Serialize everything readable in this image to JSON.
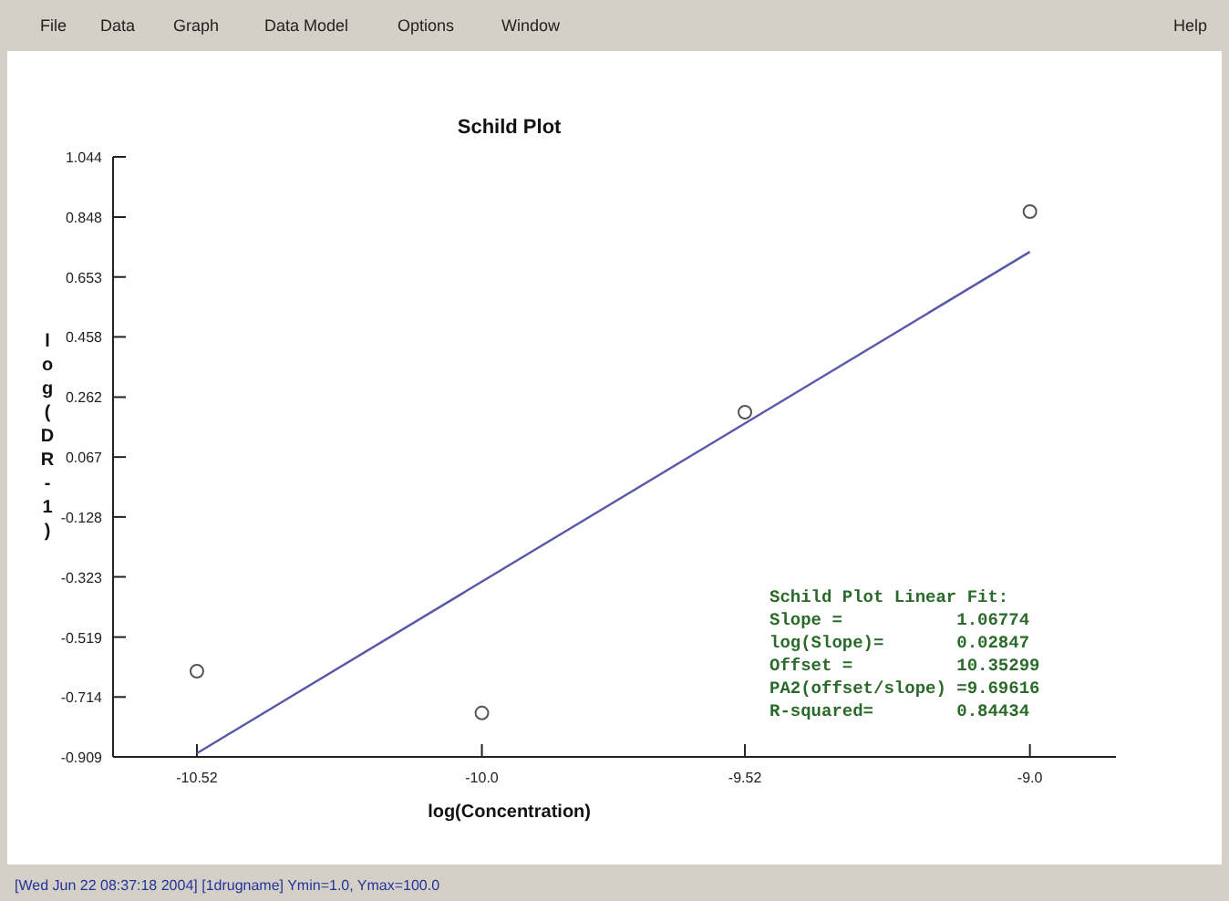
{
  "chart_data": {
    "type": "scatter",
    "title": "Schild Plot",
    "xlabel": "log(Concentration)",
    "ylabel": "log(DR-1)",
    "xlim": [
      -10.673,
      -8.843
    ],
    "ylim": [
      -0.909,
      1.044
    ],
    "xticks": [
      {
        "value": -10.52,
        "label": "-10.52"
      },
      {
        "value": -10.0,
        "label": "-10.0"
      },
      {
        "value": -9.52,
        "label": "-9.52"
      },
      {
        "value": -9.0,
        "label": "-9.0"
      }
    ],
    "yticks": [
      {
        "value": -0.909,
        "label": "-0.909"
      },
      {
        "value": -0.714,
        "label": "-0.714"
      },
      {
        "value": -0.519,
        "label": "-0.519"
      },
      {
        "value": -0.323,
        "label": "-0.323"
      },
      {
        "value": -0.128,
        "label": "-0.128"
      },
      {
        "value": 0.067,
        "label": "0.067"
      },
      {
        "value": 0.262,
        "label": "0.262"
      },
      {
        "value": 0.458,
        "label": "0.458"
      },
      {
        "value": 0.653,
        "label": "0.653"
      },
      {
        "value": 0.848,
        "label": "0.848"
      },
      {
        "value": 1.044,
        "label": "1.044"
      }
    ],
    "series": [
      {
        "color": "#555555",
        "marker": "circle",
        "x": [
          -10.52,
          -10.0,
          -9.52,
          -9.0
        ],
        "values": [
          -0.63,
          -0.766,
          0.213,
          0.866
        ]
      },
      {
        "type": "line",
        "color": "#5858a8",
        "marker": "none",
        "line_style": "solid",
        "x": [
          -10.52,
          -9.0
        ],
        "values": [
          -0.897,
          0.735
        ]
      }
    ],
    "annotations": [
      "Schild Plot Linear Fit:",
      "Slope =           1.06774",
      "log(Slope)=       0.02847",
      "Offset =          10.35299",
      "PA2(offset/slope) =9.69616",
      "R-squared=        0.84434",
      "[Wed Jun 22 08:37:18 2004]  [1drugname]   Ymin=1.0, Ymax=100.0",
      "File",
      "Data",
      "Graph",
      "Data Model",
      "Options",
      "Window",
      "Help"
    ]
  }
}
